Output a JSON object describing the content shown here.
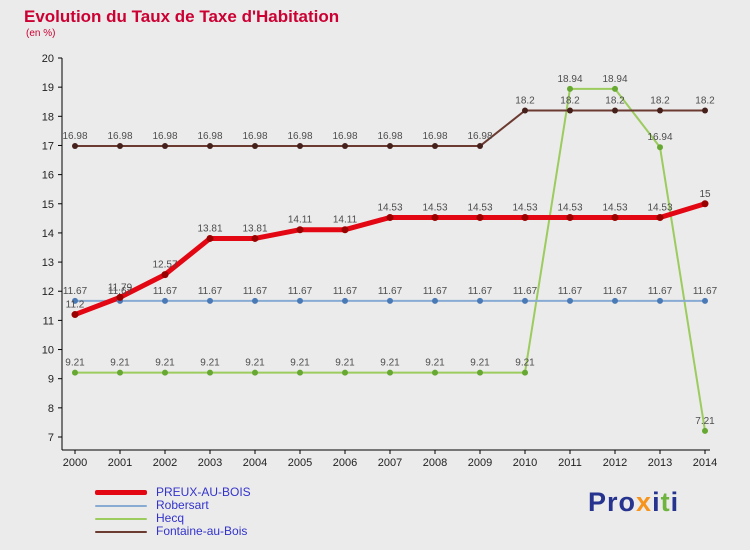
{
  "title": "Evolution du Taux de Taxe d'Habitation",
  "subtitle": "(en %)",
  "colors": {
    "title": "#cc0033",
    "background": "#ebebeb",
    "axis": "#000000",
    "tick_label": "#222222",
    "data_label": "#4d4d4d",
    "legend_text": "#3333cc"
  },
  "chart_data": {
    "type": "line",
    "title": "Evolution du Taux de Taxe d'Habitation",
    "ylabel": "en %",
    "x": [
      2000,
      2001,
      2002,
      2003,
      2004,
      2005,
      2006,
      2007,
      2008,
      2009,
      2010,
      2011,
      2012,
      2013,
      2014
    ],
    "ylim": [
      7,
      20
    ],
    "yticks": [
      7,
      8,
      9,
      10,
      11,
      12,
      13,
      14,
      15,
      16,
      17,
      18,
      19,
      20
    ],
    "grid": false,
    "legend_position": "bottom-left",
    "series": [
      {
        "name": "Hecq",
        "color": "#9ccb5e",
        "marker_color": "#66a832",
        "width": 2,
        "values": [
          9.21,
          9.21,
          9.21,
          9.21,
          9.21,
          9.21,
          9.21,
          9.21,
          9.21,
          9.21,
          9.21,
          18.94,
          18.94,
          16.94,
          7.21
        ]
      },
      {
        "name": "Robersart",
        "color": "#88abd3",
        "marker_color": "#4a7ab5",
        "width": 2,
        "values": [
          11.67,
          11.67,
          11.67,
          11.67,
          11.67,
          11.67,
          11.67,
          11.67,
          11.67,
          11.67,
          11.67,
          11.67,
          11.67,
          11.67,
          11.67
        ]
      },
      {
        "name": "Fontaine-au-Bois",
        "color": "#6b3a30",
        "marker_color": "#46201a",
        "width": 2,
        "values": [
          16.98,
          16.98,
          16.98,
          16.98,
          16.98,
          16.98,
          16.98,
          16.98,
          16.98,
          16.98,
          18.2,
          18.2,
          18.2,
          18.2,
          18.2
        ]
      },
      {
        "name": "PREUX-AU-BOIS",
        "color": "#e30613",
        "marker_color": "#9b0000",
        "width": 5,
        "values": [
          11.2,
          11.79,
          12.57,
          13.81,
          13.81,
          14.11,
          14.11,
          14.53,
          14.53,
          14.53,
          14.53,
          14.53,
          14.53,
          14.53,
          15
        ]
      }
    ]
  },
  "legend": [
    {
      "label": "PREUX-AU-BOIS",
      "color": "#e30613",
      "thickness": 5
    },
    {
      "label": "Robersart",
      "color": "#88abd3",
      "thickness": 2
    },
    {
      "label": "Hecq",
      "color": "#9ccb5e",
      "thickness": 2
    },
    {
      "label": "Fontaine-au-Bois",
      "color": "#6b3a30",
      "thickness": 2
    }
  ],
  "logo": {
    "letters": [
      {
        "ch": "P",
        "color": "#26338f"
      },
      {
        "ch": "r",
        "color": "#26338f"
      },
      {
        "ch": "o",
        "color": "#26338f"
      },
      {
        "ch": "x",
        "color": "#f7941d"
      },
      {
        "ch": "i",
        "color": "#26338f"
      },
      {
        "ch": "t",
        "color": "#6fb43f"
      },
      {
        "ch": "i",
        "color": "#26338f"
      }
    ]
  }
}
